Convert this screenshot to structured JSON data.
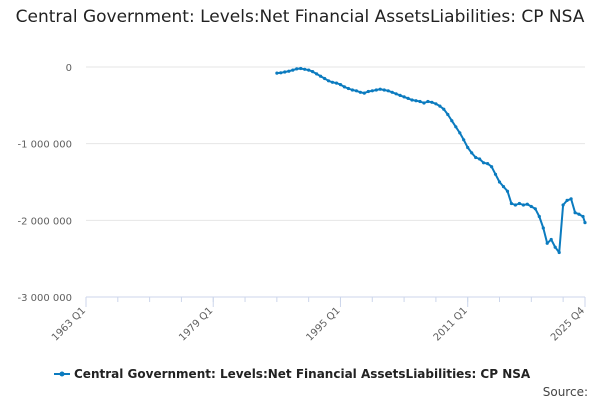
{
  "chart_data": {
    "type": "line",
    "title": "Central Government: Levels:Net Financial AssetsLiabilities: CP NSA",
    "xlabel": "",
    "ylabel": "",
    "x_range": [
      "1963 Q1",
      "2025 Q4"
    ],
    "x_tick_labels": [
      "1963 Q1",
      "1979 Q1",
      "1995 Q1",
      "2011 Q1",
      "2025 Q4"
    ],
    "y_tick_labels": [
      "0",
      "-1 000 000",
      "-2 000 000",
      "-3 000 000"
    ],
    "ylim": [
      -3000000,
      0
    ],
    "grid": true,
    "legend": "bottom",
    "series": [
      {
        "name": "Central Government: Levels:Net Financial AssetsLiabilities: CP NSA",
        "color": "#0b7bbf",
        "points": [
          [
            "1987 Q1",
            -80000
          ],
          [
            "1987 Q3",
            -75000
          ],
          [
            "1988 Q1",
            -65000
          ],
          [
            "1988 Q3",
            -55000
          ],
          [
            "1989 Q1",
            -40000
          ],
          [
            "1989 Q3",
            -25000
          ],
          [
            "1990 Q1",
            -20000
          ],
          [
            "1990 Q3",
            -30000
          ],
          [
            "1991 Q1",
            -40000
          ],
          [
            "1991 Q3",
            -60000
          ],
          [
            "1992 Q1",
            -90000
          ],
          [
            "1992 Q3",
            -120000
          ],
          [
            "1993 Q1",
            -150000
          ],
          [
            "1993 Q3",
            -180000
          ],
          [
            "1994 Q1",
            -200000
          ],
          [
            "1994 Q3",
            -210000
          ],
          [
            "1995 Q1",
            -230000
          ],
          [
            "1995 Q3",
            -260000
          ],
          [
            "1996 Q1",
            -280000
          ],
          [
            "1996 Q3",
            -300000
          ],
          [
            "1997 Q1",
            -310000
          ],
          [
            "1997 Q3",
            -330000
          ],
          [
            "1998 Q1",
            -340000
          ],
          [
            "1998 Q3",
            -320000
          ],
          [
            "1999 Q1",
            -310000
          ],
          [
            "1999 Q3",
            -300000
          ],
          [
            "2000 Q1",
            -290000
          ],
          [
            "2000 Q3",
            -300000
          ],
          [
            "2001 Q1",
            -310000
          ],
          [
            "2001 Q3",
            -330000
          ],
          [
            "2002 Q1",
            -350000
          ],
          [
            "2002 Q3",
            -370000
          ],
          [
            "2003 Q1",
            -390000
          ],
          [
            "2003 Q3",
            -410000
          ],
          [
            "2004 Q1",
            -430000
          ],
          [
            "2004 Q3",
            -440000
          ],
          [
            "2005 Q1",
            -450000
          ],
          [
            "2005 Q3",
            -470000
          ],
          [
            "2006 Q1",
            -450000
          ],
          [
            "2006 Q3",
            -460000
          ],
          [
            "2007 Q1",
            -480000
          ],
          [
            "2007 Q3",
            -510000
          ],
          [
            "2008 Q1",
            -550000
          ],
          [
            "2008 Q3",
            -620000
          ],
          [
            "2009 Q1",
            -700000
          ],
          [
            "2009 Q3",
            -780000
          ],
          [
            "2010 Q1",
            -860000
          ],
          [
            "2010 Q3",
            -950000
          ],
          [
            "2011 Q1",
            -1050000
          ],
          [
            "2011 Q3",
            -1120000
          ],
          [
            "2012 Q1",
            -1180000
          ],
          [
            "2012 Q3",
            -1200000
          ],
          [
            "2013 Q1",
            -1250000
          ],
          [
            "2013 Q3",
            -1260000
          ],
          [
            "2014 Q1",
            -1300000
          ],
          [
            "2014 Q3",
            -1400000
          ],
          [
            "2015 Q1",
            -1500000
          ],
          [
            "2015 Q3",
            -1560000
          ],
          [
            "2016 Q1",
            -1620000
          ],
          [
            "2016 Q3",
            -1780000
          ],
          [
            "2017 Q1",
            -1800000
          ],
          [
            "2017 Q3",
            -1780000
          ],
          [
            "2018 Q1",
            -1800000
          ],
          [
            "2018 Q3",
            -1790000
          ],
          [
            "2019 Q1",
            -1820000
          ],
          [
            "2019 Q3",
            -1850000
          ],
          [
            "2020 Q1",
            -1950000
          ],
          [
            "2020 Q3",
            -2100000
          ],
          [
            "2021 Q1",
            -2300000
          ],
          [
            "2021 Q3",
            -2250000
          ],
          [
            "2022 Q1",
            -2350000
          ],
          [
            "2022 Q3",
            -2420000
          ],
          [
            "2023 Q1",
            -1800000
          ],
          [
            "2023 Q3",
            -1740000
          ],
          [
            "2024 Q1",
            -1720000
          ],
          [
            "2024 Q3",
            -1900000
          ],
          [
            "2025 Q1",
            -1920000
          ],
          [
            "2025 Q3",
            -1950000
          ],
          [
            "2025 Q4",
            -2030000
          ]
        ]
      }
    ]
  },
  "source_label": "Source:"
}
